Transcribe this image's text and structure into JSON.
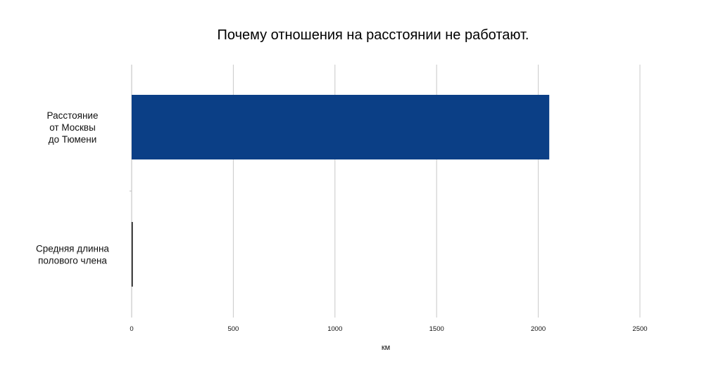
{
  "chart_data": {
    "type": "bar",
    "orientation": "horizontal",
    "title": "Почему отношения на расстоянии не работают.",
    "xlabel": "км",
    "ylabel": "",
    "categories": [
      [
        "Расстояние",
        "от Москвы",
        "до Тюмени"
      ],
      [
        "Средняя длинна",
        "полового члена"
      ]
    ],
    "values": [
      2054,
      0.00015
    ],
    "xlim": [
      0,
      2500
    ],
    "xticks": [
      "0",
      "500",
      "1000",
      "1500",
      "2000",
      "2500"
    ],
    "grid": true,
    "legend": "none",
    "colors": {
      "bar": "#0b3f86",
      "grid": "#c8c8c8"
    }
  }
}
